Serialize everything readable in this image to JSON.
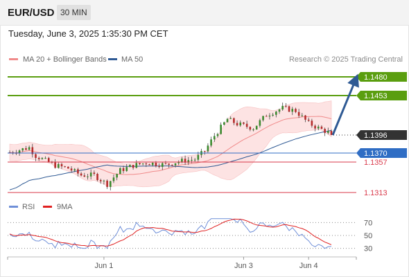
{
  "header": {
    "symbol": "EUR/USD",
    "timeframe": "30 MIN"
  },
  "datetime": "Tuesday, June 3, 2025 1:35:30 PM CET",
  "legend": {
    "ma20": "MA 20 + Bollinger Bands",
    "ma50": "MA 50",
    "credit": "Research © 2025 Trading Central",
    "colors": {
      "ma20": "#f08a8a",
      "ma50": "#2f5a94"
    }
  },
  "levels": [
    {
      "value": 1.148,
      "label": "1.1480",
      "kind": "resistance",
      "color": "#5a9e0f"
    },
    {
      "value": 1.1453,
      "label": "1.1453",
      "kind": "resistance",
      "color": "#5a9e0f"
    },
    {
      "value": 1.1396,
      "label": "1.1396",
      "kind": "last",
      "color": "#333333"
    },
    {
      "value": 1.137,
      "label": "1.1370",
      "kind": "pivot",
      "color": "#2f6dc4"
    },
    {
      "value": 1.1357,
      "label": "1.1357",
      "kind": "support",
      "color": "#d9394a"
    },
    {
      "value": 1.1313,
      "label": "1.1313",
      "kind": "support",
      "color": "#d9394a"
    }
  ],
  "x_labels": [
    "Jun 1",
    "Jun 3",
    "Jun 4"
  ],
  "rsi": {
    "legend_rsi": "RSI",
    "legend_ma": "9MA",
    "levels": [
      70,
      50,
      30
    ],
    "colors": {
      "rsi": "#6f8fd8",
      "ma": "#e02020"
    }
  },
  "chart_data": {
    "type": "candlestick",
    "ylim": [
      1.13,
      1.15
    ],
    "candle_count": 100,
    "close_path": [
      [
        0,
        1.1371
      ],
      [
        6,
        1.1378
      ],
      [
        8,
        1.1366
      ],
      [
        14,
        1.1352
      ],
      [
        18,
        1.1348
      ],
      [
        22,
        1.1338
      ],
      [
        26,
        1.1338
      ],
      [
        30,
        1.1325
      ],
      [
        34,
        1.1345
      ],
      [
        38,
        1.1352
      ],
      [
        42,
        1.1356
      ],
      [
        48,
        1.1353
      ],
      [
        52,
        1.1358
      ],
      [
        57,
        1.1361
      ],
      [
        60,
        1.1373
      ],
      [
        63,
        1.1395
      ],
      [
        67,
        1.1419
      ],
      [
        70,
        1.1412
      ],
      [
        75,
        1.1406
      ],
      [
        79,
        1.1425
      ],
      [
        84,
        1.1435
      ],
      [
        88,
        1.1431
      ],
      [
        92,
        1.1413
      ],
      [
        96,
        1.1404
      ],
      [
        100,
        1.1396
      ]
    ],
    "forecast_arrow": {
      "from": 1.1396,
      "to": 1.148
    }
  }
}
